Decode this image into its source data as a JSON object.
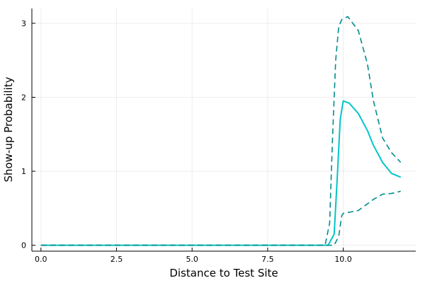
{
  "chart_data": {
    "type": "line",
    "xlabel": "Distance to Test Site",
    "ylabel": "Show-up Probability",
    "xlim": [
      -0.3,
      12.4
    ],
    "ylim": [
      -0.08,
      3.2
    ],
    "x_ticks": [
      0.0,
      2.5,
      5.0,
      7.5,
      10.0
    ],
    "x_tick_labels": [
      "0.0",
      "2.5",
      "5.0",
      "7.5",
      "10.0"
    ],
    "y_ticks": [
      0,
      1,
      2,
      3
    ],
    "y_tick_labels": [
      "0",
      "1",
      "2",
      "3"
    ],
    "grid": true,
    "legend": "none",
    "series": [
      {
        "role": "estimate",
        "color": "#00c5c8",
        "dash": "solid",
        "x": [
          0.0,
          9.0,
          9.5,
          9.7,
          9.8,
          9.9,
          10.0,
          10.2,
          10.5,
          10.8,
          11.0,
          11.3,
          11.6,
          11.9
        ],
        "y": [
          0.0,
          0.0,
          0.0,
          0.15,
          0.9,
          1.7,
          1.95,
          1.92,
          1.78,
          1.55,
          1.35,
          1.12,
          0.97,
          0.92
        ]
      },
      {
        "role": "upper bound",
        "color": "#008c8c",
        "dash": "dashed",
        "x": [
          0.0,
          9.0,
          9.4,
          9.55,
          9.65,
          9.75,
          9.85,
          9.95,
          10.15,
          10.5,
          10.8,
          11.0,
          11.3,
          11.6,
          11.9
        ],
        "y": [
          0.0,
          0.0,
          0.0,
          0.3,
          1.5,
          2.5,
          2.95,
          3.05,
          3.09,
          2.9,
          2.45,
          1.95,
          1.45,
          1.25,
          1.12
        ]
      },
      {
        "role": "lower bound",
        "color": "#008c8c",
        "dash": "dashed",
        "x": [
          0.0,
          9.0,
          9.7,
          9.85,
          9.95,
          10.0,
          10.5,
          11.0,
          11.3,
          11.6,
          11.9
        ],
        "y": [
          0.0,
          0.0,
          0.0,
          0.12,
          0.4,
          0.43,
          0.47,
          0.62,
          0.69,
          0.7,
          0.73
        ]
      }
    ]
  }
}
